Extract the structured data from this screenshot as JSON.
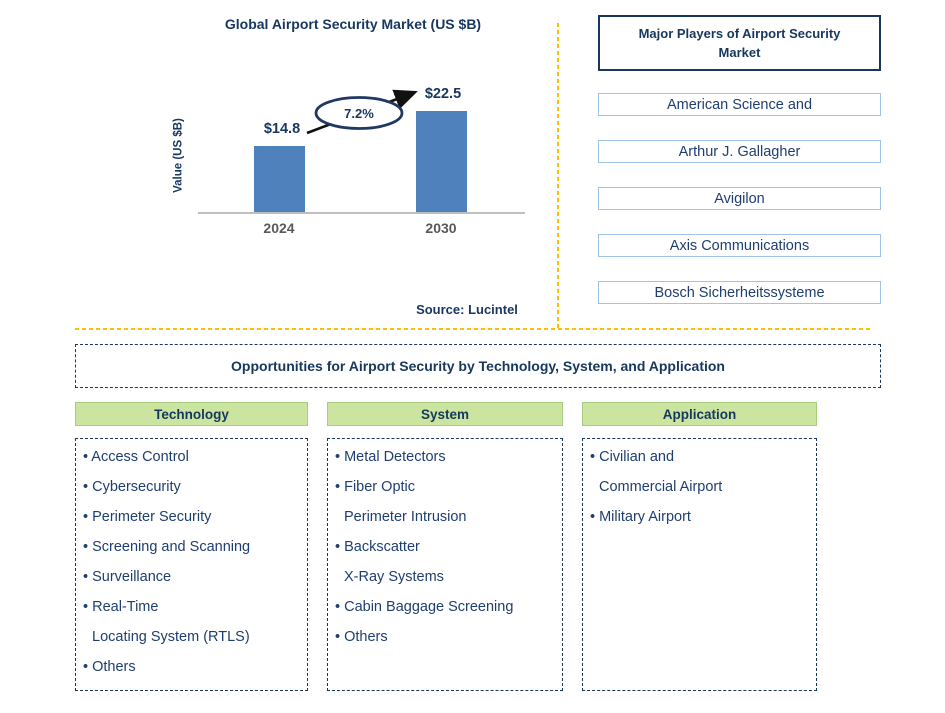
{
  "chart_data": {
    "type": "bar",
    "title": "Global Airport Security Market (US $B)",
    "xlabel": "",
    "ylabel": "Value (US $B)",
    "categories": [
      "2024",
      "2030"
    ],
    "values": [
      14.8,
      22.5
    ],
    "value_labels": [
      "$14.8",
      "$22.5"
    ],
    "cagr_label": "7.2%",
    "ylim": [
      0,
      22.5
    ],
    "grid": false,
    "legend": false,
    "bar_color": "#4F81BD"
  },
  "source_note": "Source: Lucintel",
  "players_panel": {
    "title": "Major Players of Airport Security Market",
    "items": [
      "American Science and",
      "Arthur J. Gallagher",
      "Avigilon",
      "Axis Communications",
      "Bosch Sicherheitssysteme"
    ]
  },
  "banner": {
    "title": "Opportunities for Airport Security by Technology, System, and Application"
  },
  "columns": [
    {
      "header": "Technology",
      "lines": [
        "• Access Control",
        "• Cybersecurity",
        "• Perimeter Security",
        "• Screening and Scanning",
        "• Surveillance",
        "• Real-Time",
        "Locating System (RTLS)",
        "• Others"
      ]
    },
    {
      "header": "System",
      "lines": [
        "• Metal Detectors",
        "• Fiber Optic",
        "Perimeter Intrusion",
        "• Backscatter",
        "X-Ray Systems",
        "• Cabin Baggage Screening",
        "• Others"
      ]
    },
    {
      "header": "Application",
      "lines": [
        "• Civilian and",
        "Commercial Airport",
        "• Military Airport"
      ]
    }
  ],
  "colors": {
    "navy_text": "#17375E",
    "list_text": "#1F3E70",
    "bar_blue": "#4F81BD",
    "divider_gold": "#FFC000",
    "header_green": "#CBE5A1",
    "player_border_blue": "#9DC3E6"
  }
}
